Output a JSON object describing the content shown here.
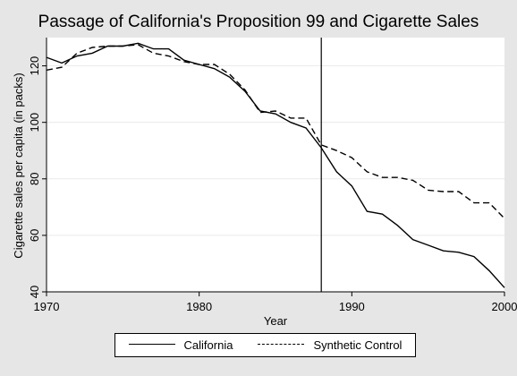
{
  "chart_data": {
    "type": "line",
    "title": "Passage of California's Proposition 99 and Cigarette Sales",
    "xlabel": "Year",
    "ylabel": "Cigarette sales per capita (in packs)",
    "xlim": [
      1970,
      2000
    ],
    "ylim": [
      40,
      130
    ],
    "xticks": [
      1970,
      1980,
      1990,
      2000
    ],
    "yticks": [
      40,
      60,
      80,
      100,
      120
    ],
    "grid": true,
    "legend_placement": "bottom",
    "vline": 1988,
    "x": [
      1970,
      1971,
      1972,
      1973,
      1974,
      1975,
      1976,
      1977,
      1978,
      1979,
      1980,
      1981,
      1982,
      1983,
      1984,
      1985,
      1986,
      1987,
      1988,
      1989,
      1990,
      1991,
      1992,
      1993,
      1994,
      1995,
      1996,
      1997,
      1998,
      1999,
      2000
    ],
    "series": [
      {
        "name": "California",
        "style": "solid",
        "color": "#000000",
        "values": [
          123,
          121,
          123.5,
          124.5,
          127,
          127,
          128,
          126,
          126,
          122,
          120.5,
          119,
          116,
          111,
          104,
          103,
          100,
          98,
          91,
          82.5,
          77.5,
          68.5,
          67.5,
          63.5,
          58.5,
          56.5,
          54.5,
          54,
          52.5,
          47.5,
          41.5
        ]
      },
      {
        "name": "Synthetic Control",
        "style": "dashed",
        "color": "#000000",
        "values": [
          118.5,
          119.5,
          124.5,
          126.5,
          127,
          127,
          127.5,
          124.5,
          123.5,
          121.5,
          120.5,
          120.5,
          117,
          111.5,
          103.5,
          104,
          101.5,
          101.5,
          92,
          90,
          87.5,
          82.5,
          80.5,
          80.5,
          79.5,
          76,
          75.5,
          75.5,
          71.5,
          71.5,
          66
        ]
      }
    ]
  },
  "colors": {
    "background": "#e6e6e6",
    "plot_area": "#ffffff",
    "grid": "#eaeaea",
    "line": "#000000"
  }
}
